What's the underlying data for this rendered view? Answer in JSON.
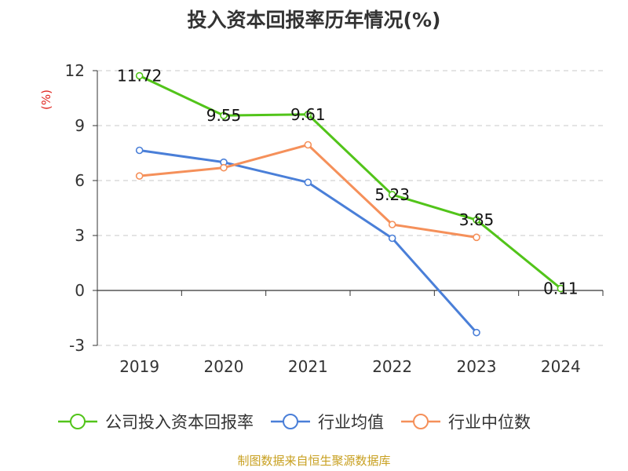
{
  "chart_data": {
    "type": "line",
    "title": "投入资本回报率历年情况(%)",
    "ylabel": "(%)",
    "categories": [
      "2019",
      "2020",
      "2021",
      "2022",
      "2023",
      "2024"
    ],
    "ylim": [
      -3,
      12
    ],
    "yticks": [
      -3,
      0,
      3,
      6,
      9,
      12
    ],
    "grid": true,
    "legend_position": "bottom",
    "series": [
      {
        "name": "公司投入资本回报率",
        "color": "#52c41a",
        "values": [
          11.72,
          9.55,
          9.61,
          5.23,
          3.85,
          0.11
        ],
        "labels": [
          "11.72",
          "9.55",
          "9.61",
          "5.23",
          "3.85",
          "0.11"
        ]
      },
      {
        "name": "行业均值",
        "color": "#4a7fd8",
        "values": [
          7.65,
          7.0,
          5.9,
          2.85,
          -2.3,
          null
        ]
      },
      {
        "name": "行业中位数",
        "color": "#f5905a",
        "values": [
          6.25,
          6.7,
          7.95,
          3.6,
          2.9,
          null
        ]
      }
    ]
  },
  "source_text": "制图数据来自恒生聚源数据库"
}
